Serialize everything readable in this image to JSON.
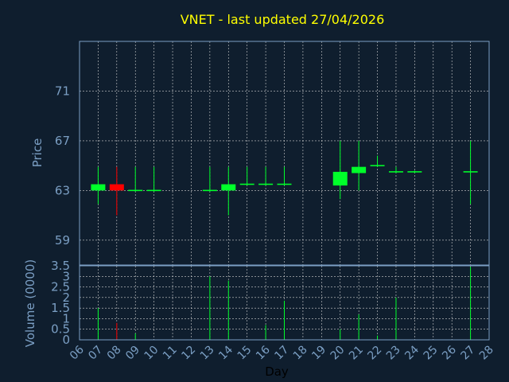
{
  "chart_data": {
    "type": "candlestick",
    "title": "VNET - last updated 27/04/2026",
    "ylabel": "Price",
    "ylabel_volume": "Volume (0000)",
    "xlabel": "Day",
    "x_ticks": [
      "06",
      "07",
      "08",
      "09",
      "10",
      "11",
      "12",
      "13",
      "14",
      "15",
      "16",
      "17",
      "18",
      "19",
      "20",
      "21",
      "22",
      "23",
      "24",
      "25",
      "26",
      "27",
      "28"
    ],
    "y_ticks": [
      "59",
      "63",
      "67",
      "71"
    ],
    "y_range": [
      57,
      75
    ],
    "volume_ticks": [
      "0",
      "0.5",
      "1",
      "1.5",
      "2",
      "2.5",
      "3",
      "3.5"
    ],
    "volume_range": [
      0,
      3.5
    ],
    "grid": true,
    "colors": {
      "up": "#00ff2a",
      "down": "#ff0000",
      "title": "#ffff00",
      "axis": "#7b9fc4",
      "background": "#0f1e2e"
    },
    "candles": [
      {
        "day": 7,
        "open": 63.0,
        "close": 63.5,
        "high": 64.9,
        "low": 61.9
      },
      {
        "day": 8,
        "open": 63.5,
        "close": 63.0,
        "high": 64.9,
        "low": 61.0
      },
      {
        "day": 9,
        "open": 62.95,
        "close": 63.05,
        "high": 64.9,
        "low": 62.9
      },
      {
        "day": 10,
        "open": 62.95,
        "close": 63.05,
        "high": 64.9,
        "low": 62.9
      },
      {
        "day": 13,
        "open": 62.95,
        "close": 63.05,
        "high": 64.9,
        "low": 62.9
      },
      {
        "day": 14,
        "open": 63.0,
        "close": 63.5,
        "high": 64.9,
        "low": 61.0
      },
      {
        "day": 15,
        "open": 63.45,
        "close": 63.55,
        "high": 64.9,
        "low": 63.4
      },
      {
        "day": 16,
        "open": 63.45,
        "close": 63.55,
        "high": 64.9,
        "low": 63.4
      },
      {
        "day": 17,
        "open": 63.45,
        "close": 63.55,
        "high": 64.9,
        "low": 63.4
      },
      {
        "day": 20,
        "open": 63.4,
        "close": 64.5,
        "high": 67.0,
        "low": 62.3
      },
      {
        "day": 21,
        "open": 64.4,
        "close": 64.9,
        "high": 67.0,
        "low": 63.0
      },
      {
        "day": 22,
        "open": 64.95,
        "close": 65.05,
        "high": 65.8,
        "low": 64.9
      },
      {
        "day": 23,
        "open": 64.45,
        "close": 64.55,
        "high": 64.9,
        "low": 64.4
      },
      {
        "day": 24,
        "open": 64.45,
        "close": 64.55,
        "high": 64.6,
        "low": 64.4
      },
      {
        "day": 27,
        "open": 64.45,
        "close": 64.55,
        "high": 67.0,
        "low": 61.9
      }
    ],
    "volume": [
      {
        "day": 7,
        "value": 1.5,
        "dir": "up"
      },
      {
        "day": 8,
        "value": 0.8,
        "dir": "down"
      },
      {
        "day": 9,
        "value": 0.3,
        "dir": "up"
      },
      {
        "day": 13,
        "value": 3.0,
        "dir": "up"
      },
      {
        "day": 14,
        "value": 2.8,
        "dir": "up"
      },
      {
        "day": 16,
        "value": 0.7,
        "dir": "up"
      },
      {
        "day": 17,
        "value": 1.85,
        "dir": "up"
      },
      {
        "day": 20,
        "value": 0.5,
        "dir": "up"
      },
      {
        "day": 21,
        "value": 1.2,
        "dir": "up"
      },
      {
        "day": 22,
        "value": 0.2,
        "dir": "up"
      },
      {
        "day": 23,
        "value": 2.0,
        "dir": "up"
      },
      {
        "day": 27,
        "value": 3.45,
        "dir": "up"
      }
    ]
  }
}
